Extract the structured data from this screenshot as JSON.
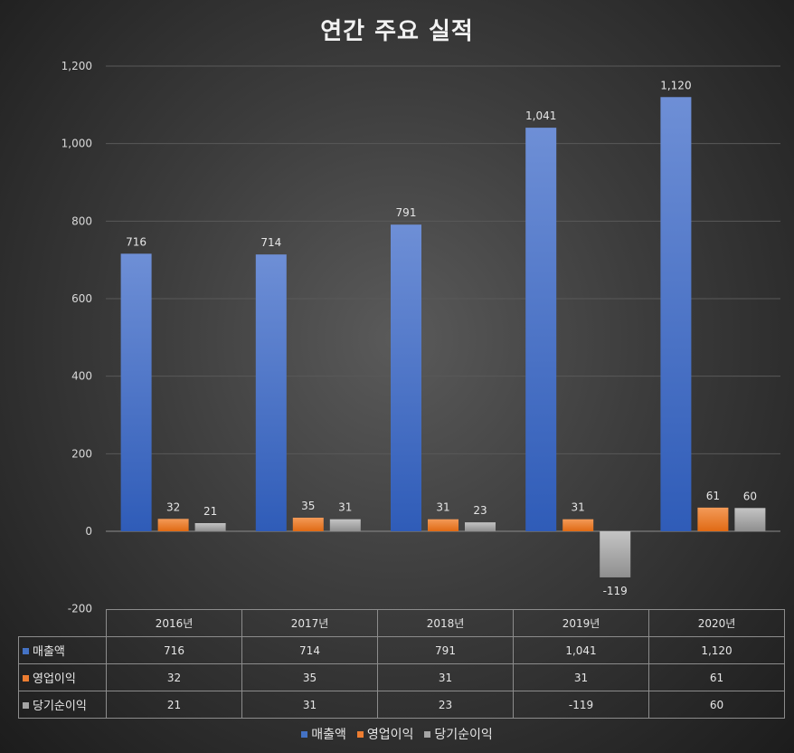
{
  "chart_data": {
    "type": "bar",
    "title": "연간 주요 실적",
    "categories": [
      "2016년",
      "2017년",
      "2018년",
      "2019년",
      "2020년"
    ],
    "series": [
      {
        "name": "매출액",
        "color": "#4472c4",
        "values": [
          716,
          714,
          791,
          1041,
          1120
        ],
        "labels": [
          "716",
          "714",
          "791",
          "1,041",
          "1,120"
        ]
      },
      {
        "name": "영업이익",
        "color": "#ed7d31",
        "values": [
          32,
          35,
          31,
          31,
          61
        ],
        "labels": [
          "32",
          "35",
          "31",
          "31",
          "61"
        ]
      },
      {
        "name": "당기순이익",
        "color": "#a5a5a5",
        "values": [
          21,
          31,
          23,
          -119,
          60
        ],
        "labels": [
          "21",
          "31",
          "23",
          "-119",
          "60"
        ]
      }
    ],
    "ylim": [
      -200,
      1200
    ],
    "yticks": [
      -200,
      0,
      200,
      400,
      600,
      800,
      1000,
      1200
    ],
    "ytick_labels": [
      "-200",
      "0",
      "200",
      "400",
      "600",
      "800",
      "1,000",
      "1,200"
    ],
    "grid": true,
    "legend": "bottom",
    "data_table": true
  }
}
